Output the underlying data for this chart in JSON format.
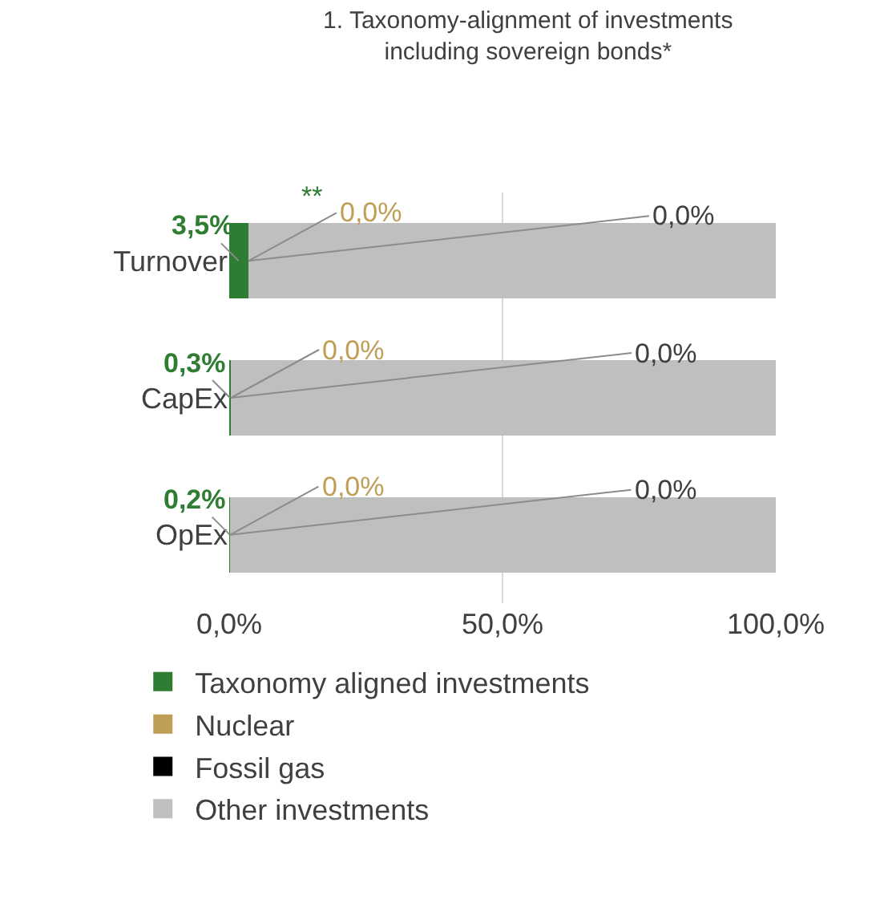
{
  "chart_data": {
    "type": "bar",
    "orientation": "horizontal",
    "stacked": true,
    "title": "1. Taxonomy-alignment of investments including sovereign bonds*",
    "categories": [
      "Turnover",
      "CapEx",
      "OpEx"
    ],
    "series": [
      {
        "name": "Taxonomy aligned investments",
        "color": "#2e7d32",
        "values": [
          3.5,
          0.3,
          0.2
        ],
        "value_labels": [
          "3,5%",
          "0,3%",
          "0,2%"
        ]
      },
      {
        "name": "Nuclear",
        "color": "#bf9f55",
        "values": [
          0.0,
          0.0,
          0.0
        ]
      },
      {
        "name": "Fossil gas",
        "color": "#000000",
        "values": [
          0.0,
          0.0,
          0.0
        ]
      },
      {
        "name": "Other investments",
        "color": "#bfbfbf",
        "values": [
          96.5,
          99.7,
          99.8
        ]
      }
    ],
    "annotations": [
      {
        "text": "0,0%",
        "x": 3.5,
        "y": "Turnover"
      },
      {
        "text": "0,0%",
        "x": 0.3,
        "y": "CapEx"
      },
      {
        "text": "0,0%",
        "x": 0.2,
        "y": "OpEx"
      },
      "0,0%",
      "0,0%",
      "0,0%",
      {
        "text": "**",
        "x": 3.5,
        "y": "Turnover"
      }
    ],
    "xlim": [
      0,
      100
    ],
    "xticks": [
      {
        "value": 0,
        "label": "0,0%"
      },
      {
        "value": 50,
        "label": "50,0%"
      },
      {
        "value": 100,
        "label": "100,0%"
      }
    ],
    "grid": "x",
    "legend": "bottom"
  }
}
